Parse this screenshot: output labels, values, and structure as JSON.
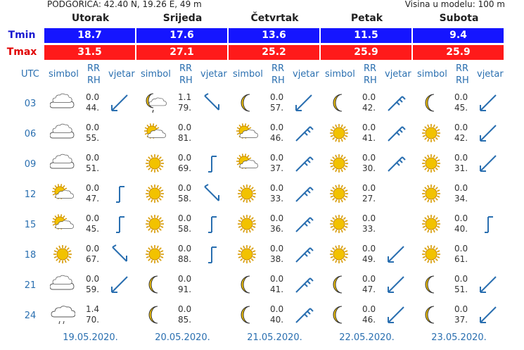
{
  "location": "PODGORICA: 42.40 N, 19.26 E, 49 m",
  "model_height": "Visina u modelu: 100 m",
  "days": [
    "Utorak",
    "Srijeda",
    "Četvrtak",
    "Petak",
    "Subota"
  ],
  "tmin_label": "Tmin",
  "tmax_label": "Tmax",
  "tmin": [
    "18.7",
    "17.6",
    "13.6",
    "11.5",
    "9.4"
  ],
  "tmax": [
    "31.5",
    "27.1",
    "25.2",
    "25.9",
    "25.9"
  ],
  "headers": {
    "utc": "UTC",
    "simbol": "simbol",
    "rr": "RR",
    "rh": "RH",
    "vjetar": "vjetar"
  },
  "dates": [
    "19.05.2020.",
    "20.05.2020.",
    "21.05.2020.",
    "22.05.2020.",
    "23.05.2020."
  ],
  "hours": [
    "03",
    "06",
    "09",
    "12",
    "15",
    "18",
    "21",
    "24"
  ],
  "grid": [
    [
      {
        "sym": "cloud",
        "rr": "0.0",
        "rh": "44.",
        "wind": "sw2"
      },
      {
        "sym": "cloud",
        "rr": "0.0",
        "rh": "55.",
        "wind": ""
      },
      {
        "sym": "cloud",
        "rr": "0.0",
        "rh": "51.",
        "wind": ""
      },
      {
        "sym": "suncloud",
        "rr": "0.0",
        "rh": "47.",
        "wind": "n1"
      },
      {
        "sym": "suncloud",
        "rr": "0.0",
        "rh": "45.",
        "wind": "n1"
      },
      {
        "sym": "sun",
        "rr": "0.0",
        "rh": "67.",
        "wind": "se2"
      },
      {
        "sym": "cloud",
        "rr": "0.0",
        "rh": "59.",
        "wind": "sw2"
      },
      {
        "sym": "raincloud",
        "rr": "1.4",
        "rh": "70.",
        "wind": ""
      }
    ],
    [
      {
        "sym": "moonrain",
        "rr": "1.1",
        "rh": "79.",
        "wind": "se2"
      },
      {
        "sym": "suncloud",
        "rr": "0.0",
        "rh": "81.",
        "wind": ""
      },
      {
        "sym": "sun",
        "rr": "0.0",
        "rh": "69.",
        "wind": "n1"
      },
      {
        "sym": "sun",
        "rr": "0.0",
        "rh": "58.",
        "wind": "se2"
      },
      {
        "sym": "sun",
        "rr": "0.0",
        "rh": "58.",
        "wind": "n1"
      },
      {
        "sym": "sun",
        "rr": "0.0",
        "rh": "88.",
        "wind": "n1"
      },
      {
        "sym": "moon",
        "rr": "0.0",
        "rh": "91.",
        "wind": ""
      },
      {
        "sym": "moon",
        "rr": "0.0",
        "rh": "85.",
        "wind": ""
      }
    ],
    [
      {
        "sym": "moon",
        "rr": "0.0",
        "rh": "57.",
        "wind": "sw2"
      },
      {
        "sym": "suncloud",
        "rr": "0.0",
        "rh": "46.",
        "wind": "sw3"
      },
      {
        "sym": "suncloud",
        "rr": "0.0",
        "rh": "37.",
        "wind": "sw3"
      },
      {
        "sym": "sun",
        "rr": "0.0",
        "rh": "33.",
        "wind": "sw3"
      },
      {
        "sym": "sun",
        "rr": "0.0",
        "rh": "36.",
        "wind": "sw3"
      },
      {
        "sym": "sun",
        "rr": "0.0",
        "rh": "38.",
        "wind": "sw3"
      },
      {
        "sym": "moon",
        "rr": "0.0",
        "rh": "41.",
        "wind": "sw3"
      },
      {
        "sym": "moon",
        "rr": "0.0",
        "rh": "40.",
        "wind": "sw3"
      }
    ],
    [
      {
        "sym": "moon",
        "rr": "0.0",
        "rh": "42.",
        "wind": "sw3"
      },
      {
        "sym": "sun",
        "rr": "0.0",
        "rh": "41.",
        "wind": "sw3"
      },
      {
        "sym": "sun",
        "rr": "0.0",
        "rh": "30.",
        "wind": "sw3"
      },
      {
        "sym": "sun",
        "rr": "0.0",
        "rh": "27.",
        "wind": ""
      },
      {
        "sym": "sun",
        "rr": "0.0",
        "rh": "33.",
        "wind": ""
      },
      {
        "sym": "sun",
        "rr": "0.0",
        "rh": "49.",
        "wind": "sw2"
      },
      {
        "sym": "moon",
        "rr": "0.0",
        "rh": "47.",
        "wind": "sw2"
      },
      {
        "sym": "moon",
        "rr": "0.0",
        "rh": "46.",
        "wind": "sw2"
      }
    ],
    [
      {
        "sym": "moon",
        "rr": "0.0",
        "rh": "45.",
        "wind": "sw2"
      },
      {
        "sym": "sun",
        "rr": "0.0",
        "rh": "42.",
        "wind": "sw2"
      },
      {
        "sym": "sun",
        "rr": "0.0",
        "rh": "31.",
        "wind": "sw2"
      },
      {
        "sym": "sun",
        "rr": "0.0",
        "rh": "34.",
        "wind": ""
      },
      {
        "sym": "sun",
        "rr": "0.0",
        "rh": "40.",
        "wind": "n1"
      },
      {
        "sym": "sun",
        "rr": "0.0",
        "rh": "61.",
        "wind": ""
      },
      {
        "sym": "moon",
        "rr": "0.0",
        "rh": "51.",
        "wind": "sw2"
      },
      {
        "sym": "moon",
        "rr": "0.0",
        "rh": "37.",
        "wind": "sw2"
      }
    ]
  ],
  "colors": {
    "tmin_bg": "#1515ff",
    "tmax_bg": "#ff1a1a",
    "link": "#2a6fb0",
    "sun": "#f2c200",
    "wind": "#2a6fb0"
  }
}
